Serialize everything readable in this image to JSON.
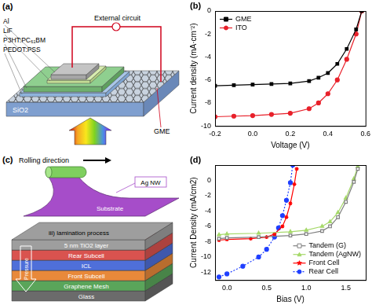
{
  "chart_data": [
    {
      "type": "line",
      "annotations": [
        "(b)"
      ],
      "xlabel": "Voltage (V)",
      "ylabel": "Current density (mA·cm⁻²)",
      "xlim": [
        -0.2,
        0.6
      ],
      "xticks": [
        -0.2,
        {
          "value": 0,
          "label": "0.0"
        },
        0.2,
        0.4,
        0.6
      ],
      "ylim": [
        -10,
        0
      ],
      "yticks": [
        -10,
        -8,
        -6,
        -4,
        -2,
        0
      ],
      "grid": false,
      "legend": "top-left",
      "series": [
        {
          "name": "GME",
          "color": "#000000",
          "marker": "square",
          "line_style": "solid",
          "x": [
            -0.2,
            -0.1,
            0,
            0.1,
            0.2,
            0.3,
            0.35,
            0.4,
            0.45,
            0.5,
            0.55,
            0.58
          ],
          "values": [
            -6.5,
            -6.45,
            -6.4,
            -6.35,
            -6.3,
            -6.1,
            -5.8,
            -5.4,
            -4.6,
            -3.3,
            -1.6,
            0
          ]
        },
        {
          "name": "ITO",
          "color": "#e8202a",
          "marker": "circle",
          "line_style": "solid",
          "x": [
            -0.2,
            -0.1,
            0,
            0.1,
            0.2,
            0.3,
            0.35,
            0.4,
            0.45,
            0.5,
            0.55,
            0.58
          ],
          "values": [
            -9.2,
            -9.15,
            -9.1,
            -9.0,
            -8.9,
            -8.5,
            -8.0,
            -7.2,
            -6.0,
            -4.2,
            -2.0,
            0
          ]
        }
      ]
    },
    {
      "type": "line",
      "annotations": [
        "(d)"
      ],
      "xlabel": "Bias (V)",
      "ylabel": "Current Density (mA/cm2)",
      "xlim": [
        -0.15,
        1.75
      ],
      "xticks": [
        {
          "value": 0,
          "label": "0.0"
        },
        0.5,
        {
          "value": 1,
          "label": "1.0"
        },
        1.5
      ],
      "ylim": [
        -13,
        2
      ],
      "yticks": [
        -12,
        -10,
        -8,
        -6,
        -4,
        -2,
        0
      ],
      "grid": false,
      "legend": "bottom-right",
      "series": [
        {
          "name": "Tandem (G)",
          "color": "#7f7f7f",
          "marker": "open_square",
          "line_style": "solid",
          "x": [
            -0.1,
            0,
            0.4,
            0.8,
            1.0,
            1.2,
            1.3,
            1.4,
            1.5,
            1.6,
            1.65
          ],
          "values": [
            -7.6,
            -7.5,
            -7.4,
            -7.2,
            -7.0,
            -6.6,
            -6.0,
            -4.8,
            -2.8,
            -0.2,
            1.5
          ]
        },
        {
          "name": "Tandem (AgNW)",
          "color": "#a6d96a",
          "marker": "triangle",
          "line_style": "solid",
          "x": [
            -0.1,
            0,
            0.4,
            0.8,
            1.0,
            1.2,
            1.3,
            1.4,
            1.5,
            1.6,
            1.65
          ],
          "values": [
            -7.1,
            -7.0,
            -6.9,
            -6.7,
            -6.5,
            -6.0,
            -5.4,
            -4.2,
            -2.3,
            0.2,
            1.8
          ]
        },
        {
          "name": "Front Cell",
          "color": "#ff0000",
          "marker": "star",
          "line_style": "solid",
          "x": [
            -0.1,
            0,
            0.3,
            0.5,
            0.6,
            0.7,
            0.75,
            0.8,
            0.85,
            0.88
          ],
          "values": [
            -7.8,
            -7.7,
            -7.6,
            -7.4,
            -7.0,
            -6.0,
            -4.8,
            -3.0,
            -0.5,
            1.5
          ]
        },
        {
          "name": "Rear Cell",
          "color": "#1f3fff",
          "marker": "circle",
          "line_style": "dotted",
          "x": [
            -0.1,
            0,
            0.2,
            0.4,
            0.5,
            0.6,
            0.65,
            0.7,
            0.75,
            0.8,
            0.83
          ],
          "values": [
            -12.6,
            -12.2,
            -11.2,
            -10.0,
            -9.0,
            -7.4,
            -6.2,
            -4.6,
            -2.6,
            -0.3,
            2.0
          ]
        }
      ]
    }
  ],
  "diagrams": {
    "a": {
      "label": "(a)",
      "circuit": "External circuit",
      "top_electrode": "Al",
      "layers": [
        "LiF",
        "P3HT:PC₆₁BM",
        "PEDOT:PSS"
      ],
      "electrode": "GME",
      "substrate": "SiO2"
    },
    "c": {
      "label": "(c)",
      "rolling": "Rolling direction",
      "wire": "Ag NW",
      "substrate": "Substrate",
      "layers": [
        "5 nm TiO2 layer",
        "Rear Subcell",
        "ICL",
        "Front Subcell",
        "Graphene Mesh",
        "Glass"
      ],
      "pressure": "Pressure",
      "caption": "iii) lamination process"
    }
  }
}
